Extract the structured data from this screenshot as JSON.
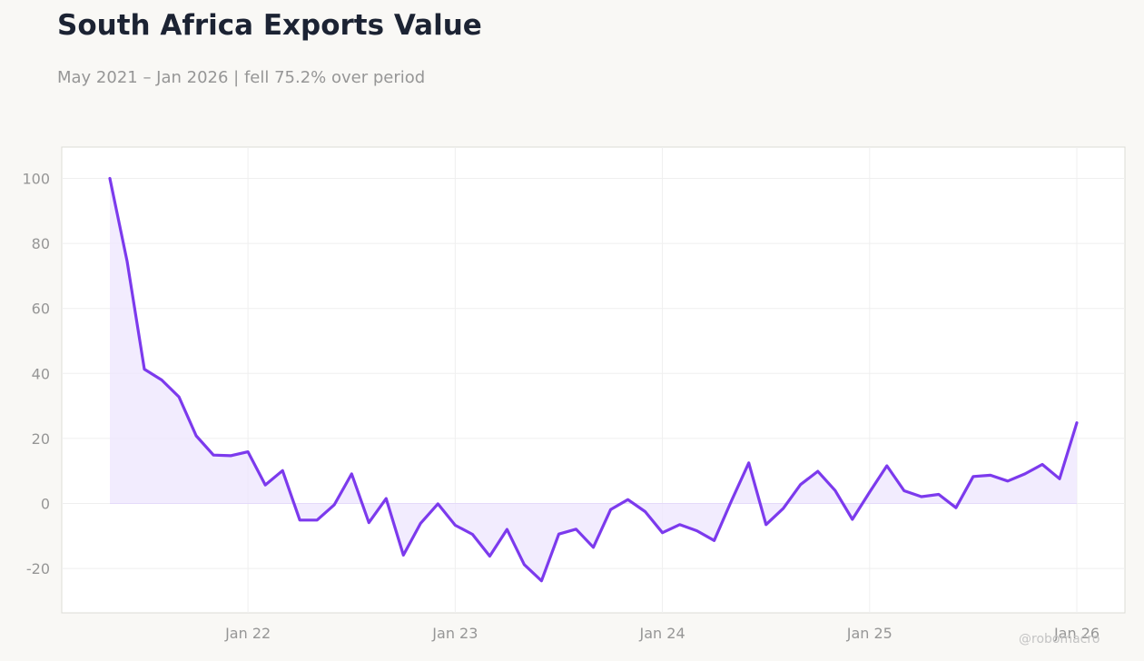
{
  "header": {
    "title": "South Africa Exports Value",
    "subtitle": "May 2021 – Jan 2026 | fell 75.2% over period"
  },
  "watermark": "@robomacro",
  "colors": {
    "line": "#7c3aed",
    "fill": "#ede5fd",
    "background": "#f9f8f5",
    "plot_background": "#ffffff",
    "grid": "#efefef",
    "text_muted": "#969696"
  },
  "chart_data": {
    "type": "area",
    "title": "South Africa Exports Value",
    "subtitle": "May 2021 – Jan 2026 | fell 75.2% over period",
    "xlabel": "",
    "ylabel": "",
    "ylim": [
      -34,
      110
    ],
    "yticks": [
      -20,
      0,
      20,
      40,
      60,
      80,
      100
    ],
    "xticks": [
      {
        "date": "2022-01",
        "label": "Jan 22"
      },
      {
        "date": "2023-01",
        "label": "Jan 23"
      },
      {
        "date": "2024-01",
        "label": "Jan 24"
      },
      {
        "date": "2025-01",
        "label": "Jan 25"
      },
      {
        "date": "2026-01",
        "label": "Jan 26"
      }
    ],
    "grid": true,
    "legend": "none",
    "series": [
      {
        "x": [
          "2021-05",
          "2021-06",
          "2021-07",
          "2021-08",
          "2021-09",
          "2021-10",
          "2021-11",
          "2021-12",
          "2022-01",
          "2022-02",
          "2022-03",
          "2022-04",
          "2022-05",
          "2022-06",
          "2022-07",
          "2022-08",
          "2022-09",
          "2022-10",
          "2022-11",
          "2022-12",
          "2023-01",
          "2023-02",
          "2023-03",
          "2023-04",
          "2023-05",
          "2023-06",
          "2023-07",
          "2023-08",
          "2023-09",
          "2023-10",
          "2023-11",
          "2023-12",
          "2024-01",
          "2024-02",
          "2024-03",
          "2024-04",
          "2024-05",
          "2024-06",
          "2024-07",
          "2024-08",
          "2024-09",
          "2024-10",
          "2024-11",
          "2024-12",
          "2025-01",
          "2025-02",
          "2025-03",
          "2025-04",
          "2025-05",
          "2025-06",
          "2025-07",
          "2025-08",
          "2025-09",
          "2025-10",
          "2025-11",
          "2025-12",
          "2026-01"
        ],
        "values": [
          100,
          74.5,
          41.3,
          38.0,
          32.8,
          20.8,
          14.9,
          14.7,
          15.9,
          5.7,
          10.1,
          -5.1,
          -5.1,
          -0.4,
          9.1,
          -5.9,
          1.5,
          -15.9,
          -6.1,
          -0.1,
          -6.7,
          -9.5,
          -16.2,
          -8.0,
          -18.8,
          -23.8,
          -9.4,
          -7.9,
          -13.5,
          -1.9,
          1.2,
          -2.5,
          -9.0,
          -6.5,
          -8.4,
          -11.4,
          0.8,
          12.5,
          -6.5,
          -1.5,
          5.8,
          9.9,
          4.0,
          -4.9,
          3.5,
          11.6,
          3.9,
          2.1,
          2.8,
          -1.3,
          8.3,
          8.7,
          6.9,
          9.1,
          12.0,
          7.6,
          24.8
        ]
      }
    ]
  }
}
